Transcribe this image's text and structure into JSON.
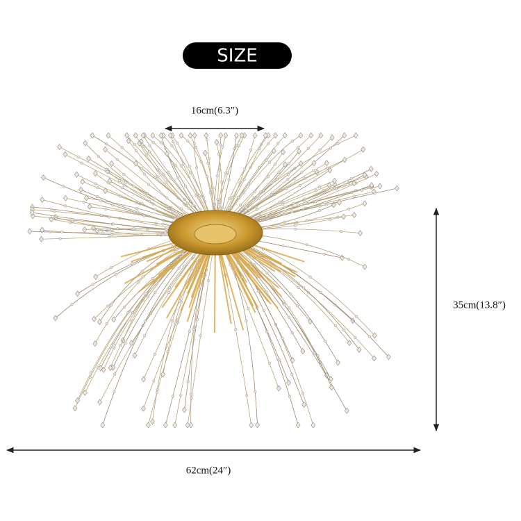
{
  "header": {
    "title": "SIZE"
  },
  "dimensions": {
    "top_width": "16cm(6.3″)",
    "height": "35cm(13.8″)",
    "overall_width": "62cm(24″)"
  }
}
